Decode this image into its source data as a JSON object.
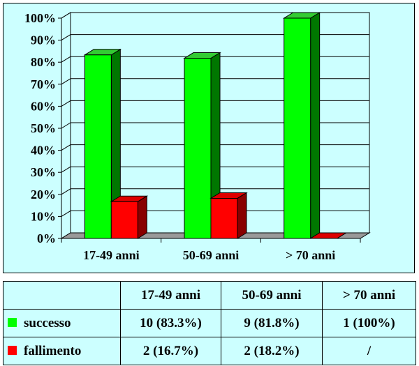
{
  "chart_data": {
    "type": "bar",
    "style": "3d-column",
    "categories": [
      "17-49 anni",
      "50-69 anni",
      "> 70 anni"
    ],
    "series": [
      {
        "name": "successo",
        "values": [
          83.3,
          81.8,
          100
        ],
        "color": "#00ff00",
        "side_color": "#007700",
        "top_color": "#33cc33"
      },
      {
        "name": "fallimento",
        "values": [
          16.7,
          18.2,
          0
        ],
        "color": "#ff0000",
        "side_color": "#880000",
        "top_color": "#dd0000"
      }
    ],
    "ylim": [
      0,
      100
    ],
    "yticks": [
      {
        "value": 0,
        "label": "0%"
      },
      {
        "value": 10,
        "label": "10%"
      },
      {
        "value": 20,
        "label": "20%"
      },
      {
        "value": 30,
        "label": "30%"
      },
      {
        "value": 40,
        "label": "40%"
      },
      {
        "value": 50,
        "label": "50%"
      },
      {
        "value": 60,
        "label": "60%"
      },
      {
        "value": 70,
        "label": "70%"
      },
      {
        "value": 80,
        "label": "80%"
      },
      {
        "value": 90,
        "label": "90%"
      },
      {
        "value": 100,
        "label": "100%"
      }
    ],
    "title": "",
    "xlabel": "",
    "ylabel": "",
    "grid": true,
    "background": "#ccffff",
    "floor_color": "#999999"
  },
  "table": {
    "headers": [
      "",
      "17-49 anni",
      "50-69 anni",
      "> 70 anni"
    ],
    "rows": [
      {
        "label": "successo",
        "color": "#00ff00",
        "cells": [
          "10 (83.3%)",
          "9 (81.8%)",
          "1 (100%)"
        ]
      },
      {
        "label": "fallimento",
        "color": "#ff0000",
        "cells": [
          "2 (16.7%)",
          "2 (18.2%)",
          "/"
        ]
      }
    ]
  }
}
